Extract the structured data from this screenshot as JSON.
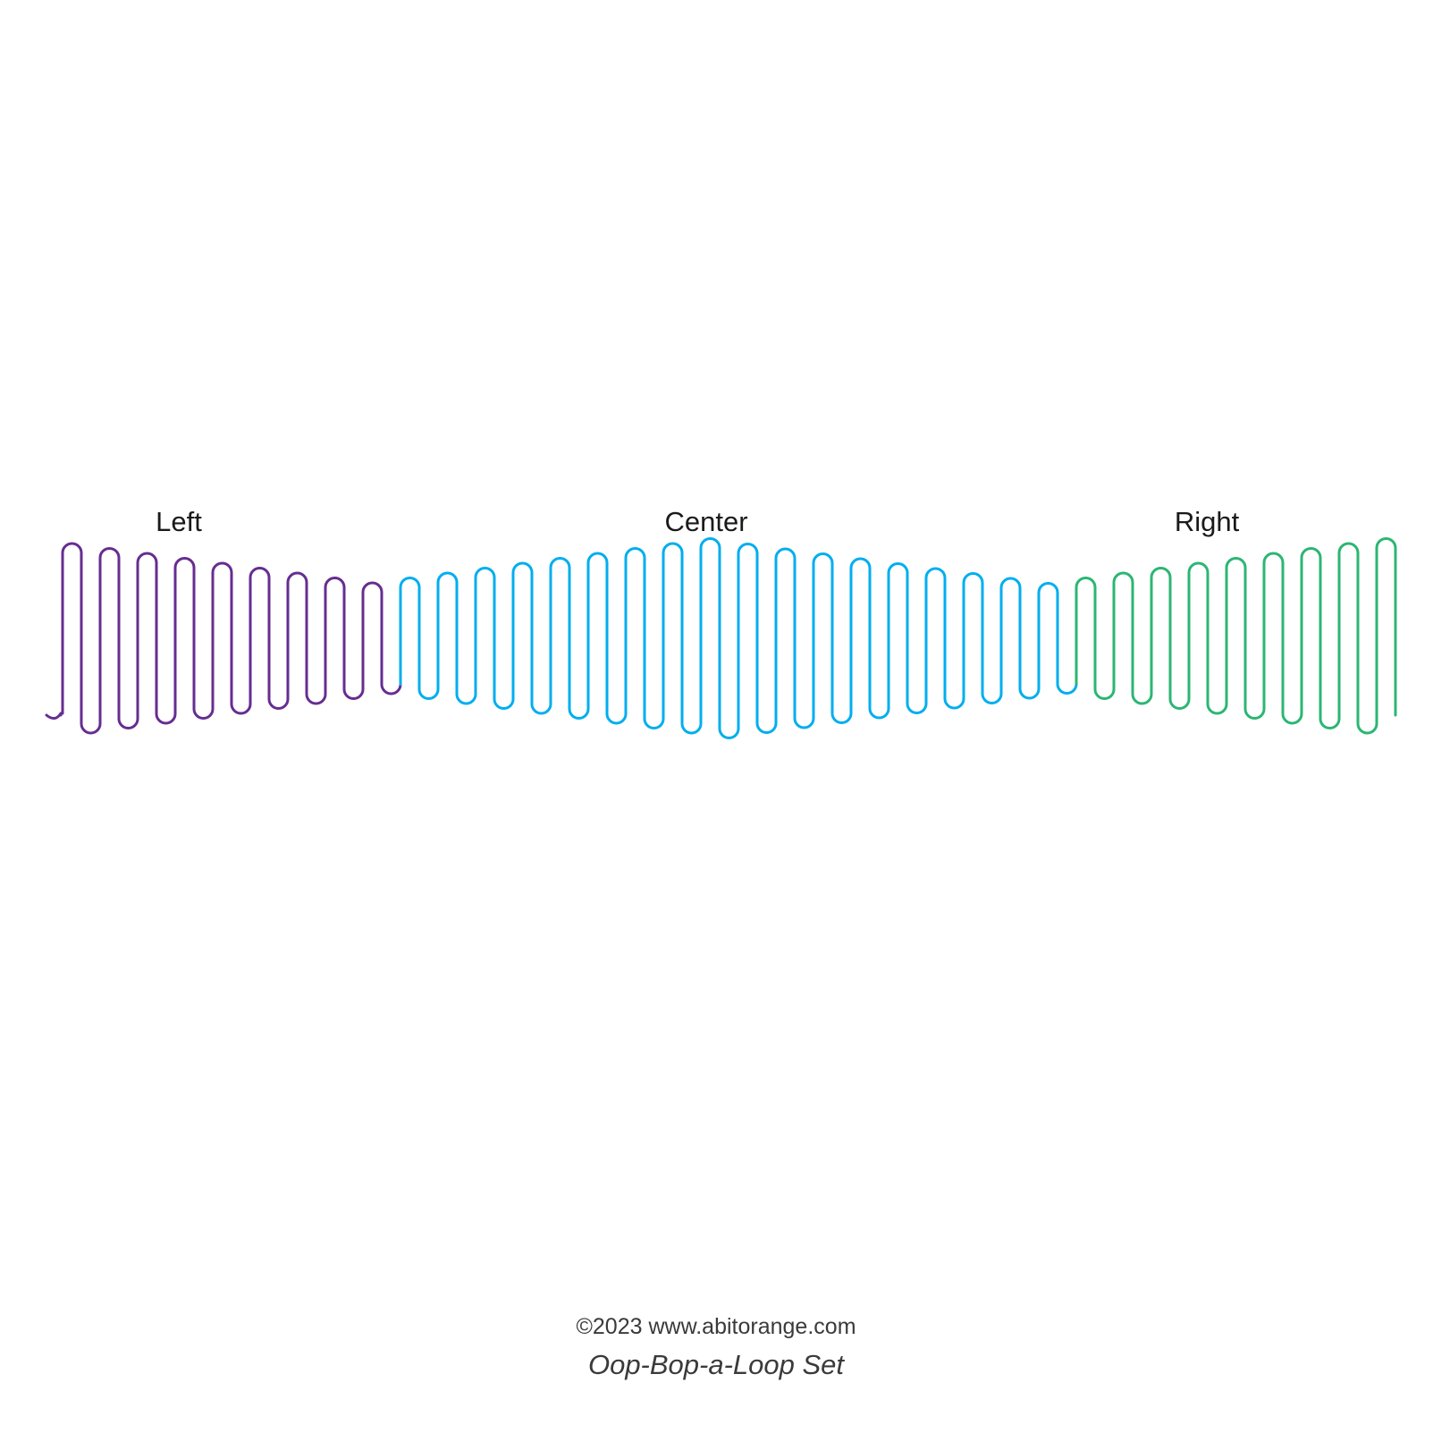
{
  "labels": {
    "left": "Left",
    "center": "Center",
    "right": "Right"
  },
  "footer": {
    "copyright": "©2023 www.abitorange.com",
    "set_name": "Oop-Bop-a-Loop Set"
  },
  "colors": {
    "left": "#662d91",
    "center": "#00aeef",
    "right": "#2bb673"
  }
}
